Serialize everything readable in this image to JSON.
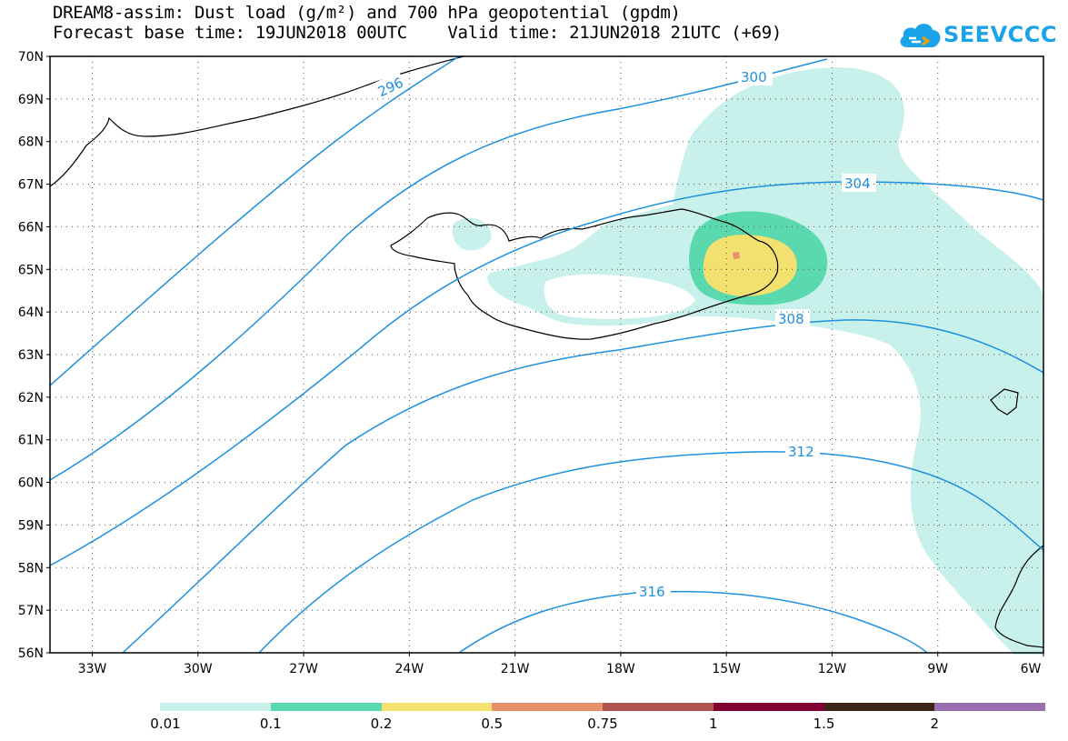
{
  "title": {
    "line1": "DREAM8-assim: Dust load (g/m²) and 700 hPa geopotential (gpdm)",
    "line2": "Forecast base time: 19JUN2018 00UTC    Valid time: 21JUN2018 21UTC (+69)"
  },
  "logo": {
    "text": "SEEVCCC",
    "icon": "cloud-icon",
    "color": "#1aa3e8"
  },
  "map": {
    "lat_labels": [
      "70N",
      "69N",
      "68N",
      "67N",
      "66N",
      "65N",
      "64N",
      "63N",
      "62N",
      "61N",
      "60N",
      "59N",
      "58N",
      "57N",
      "56N"
    ],
    "lon_labels": [
      "33W",
      "30W",
      "27W",
      "24W",
      "21W",
      "18W",
      "15W",
      "12W",
      "9W",
      "6W"
    ],
    "lat_range": [
      56,
      70
    ],
    "lon_range": [
      -34.2,
      -6
    ],
    "grid": "dotted",
    "contour_color": "#1e90e0",
    "contour_labels": [
      "296",
      "300",
      "304",
      "308",
      "312",
      "316"
    ]
  },
  "colorbar": {
    "labels": [
      "0.01",
      "0.1",
      "0.2",
      "0.5",
      "0.75",
      "1",
      "1.5",
      "2"
    ],
    "colors": [
      "#c7f1ea",
      "#5ad8ae",
      "#f2e06f",
      "#e8906a",
      "#b0524e",
      "#820032",
      "#3a2516",
      "#9a6fb0"
    ]
  }
}
